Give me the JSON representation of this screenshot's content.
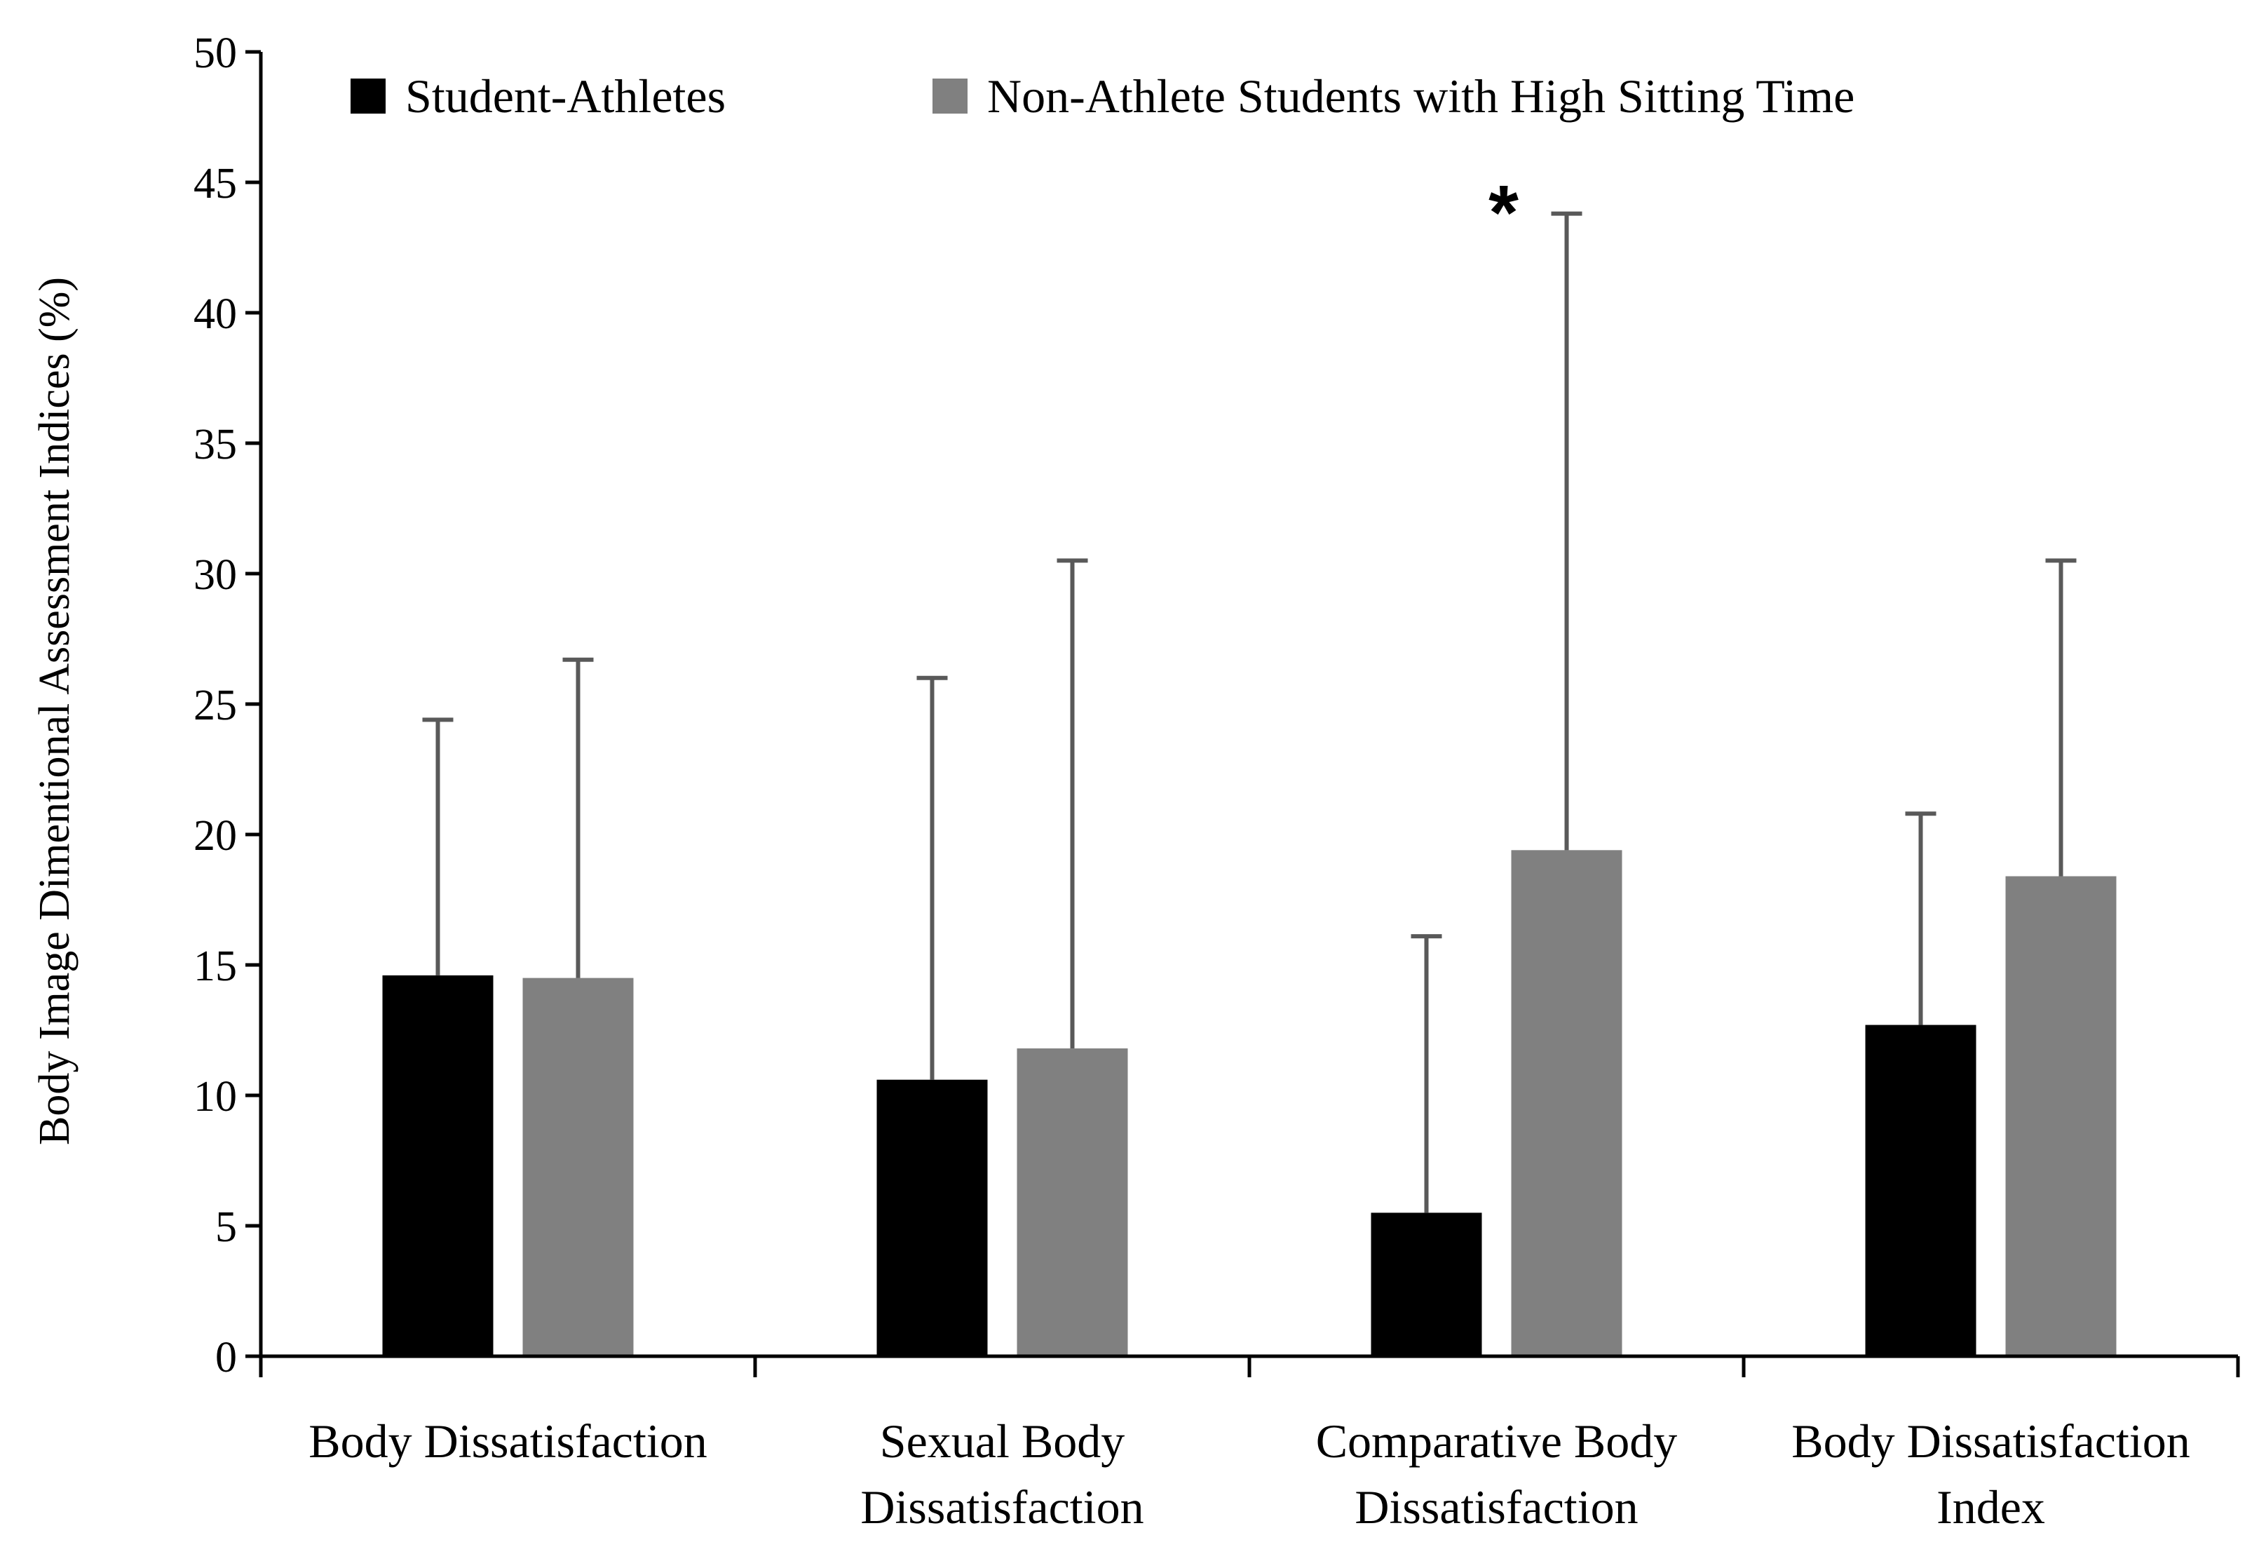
{
  "chart_data": {
    "type": "bar",
    "title": "",
    "xlabel": "",
    "ylabel": "Body Image Dimentional Assessment Indices  (%)",
    "ylim": [
      0,
      50
    ],
    "yticks": [
      "0",
      "5",
      "10",
      "15",
      "20",
      "25",
      "30",
      "35",
      "40",
      "45",
      "50"
    ],
    "ytick_values": [
      0,
      5,
      10,
      15,
      20,
      25,
      30,
      35,
      40,
      45,
      50
    ],
    "categories": [
      [
        "Body Dissatisfaction"
      ],
      [
        "Sexual Body",
        "Dissatisfaction"
      ],
      [
        "Comparative Body",
        "Dissatisfaction"
      ],
      [
        "Body Dissatisfaction",
        "Index"
      ]
    ],
    "series": [
      {
        "name": "Student-Athletes",
        "color": "#000000",
        "values": [
          14.6,
          10.6,
          5.5,
          12.7
        ],
        "error_upper": [
          24.4,
          26.0,
          16.1,
          20.8
        ]
      },
      {
        "name": "Non-Athlete Students with High Sitting Time",
        "color": "#808080",
        "values": [
          14.5,
          11.8,
          19.4,
          18.4
        ],
        "error_upper": [
          26.7,
          30.5,
          43.8,
          30.5
        ]
      }
    ],
    "annotations": [
      {
        "text": "*",
        "category_index": 2,
        "y": 44.7
      }
    ],
    "legend": {
      "position": "top",
      "orientation": "horizontal"
    },
    "grid": false
  }
}
